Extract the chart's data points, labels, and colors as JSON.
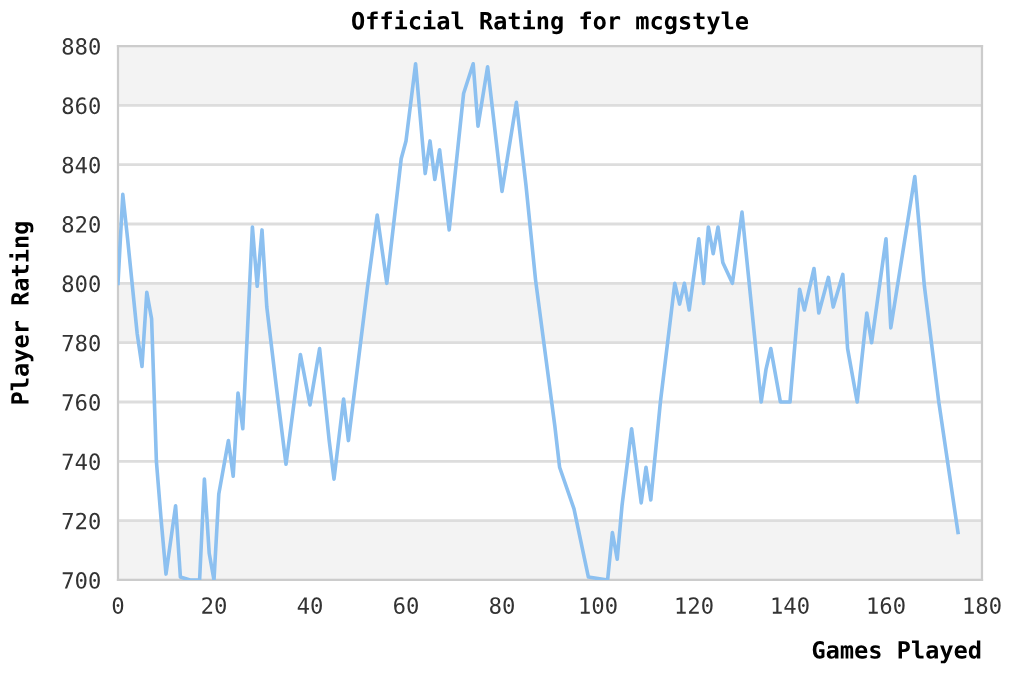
{
  "chart_data": {
    "type": "line",
    "title": "Official Rating for mcgstyle",
    "xlabel": "Games Played",
    "ylabel": "Player Rating",
    "xlim": [
      0,
      180
    ],
    "xticks": [
      0,
      20,
      40,
      60,
      80,
      100,
      120,
      140,
      160,
      180
    ],
    "ylim": [
      700,
      880
    ],
    "yticks": [
      700,
      720,
      740,
      760,
      780,
      800,
      820,
      840,
      860,
      880
    ],
    "grid": "y",
    "marker": "none",
    "line_style": "solid",
    "series": [
      {
        "color": "#8cc0f0",
        "x": [
          0,
          1,
          2,
          4,
          5,
          6,
          7,
          8,
          9,
          10,
          12,
          13,
          15,
          17,
          18,
          19,
          20,
          21,
          23,
          24,
          25,
          26,
          28,
          29,
          30,
          31,
          33,
          35,
          38,
          40,
          42,
          44,
          45,
          47,
          48,
          52,
          54,
          56,
          59,
          60,
          62,
          64,
          65,
          66,
          67,
          69,
          72,
          74,
          75,
          77,
          80,
          83,
          85,
          87,
          91,
          92,
          95,
          98,
          102,
          103,
          104,
          105,
          107,
          109,
          110,
          111,
          113,
          116,
          117,
          118,
          119,
          121,
          122,
          123,
          124,
          125,
          126,
          128,
          130,
          134,
          135,
          136,
          138,
          140,
          142,
          143,
          145,
          146,
          148,
          149,
          151,
          152,
          154,
          156,
          157,
          160,
          161,
          166,
          168,
          171,
          175
        ],
        "values": [
          800,
          830,
          815,
          783,
          772,
          797,
          788,
          740,
          720,
          702,
          725,
          701,
          700,
          700,
          734,
          709,
          700,
          729,
          747,
          735,
          763,
          751,
          819,
          799,
          818,
          792,
          765,
          739,
          776,
          759,
          778,
          747,
          734,
          761,
          747,
          799,
          823,
          800,
          842,
          848,
          874,
          837,
          848,
          835,
          845,
          818,
          864,
          874,
          853,
          873,
          831,
          861,
          833,
          801,
          752,
          738,
          724,
          701,
          700,
          716,
          707,
          725,
          751,
          726,
          738,
          727,
          760,
          800,
          793,
          800,
          791,
          815,
          800,
          819,
          810,
          819,
          807,
          800,
          824,
          760,
          771,
          778,
          760,
          760,
          798,
          791,
          805,
          790,
          802,
          792,
          803,
          778,
          760,
          790,
          780,
          815,
          785,
          836,
          799,
          760,
          716
        ]
      }
    ]
  }
}
